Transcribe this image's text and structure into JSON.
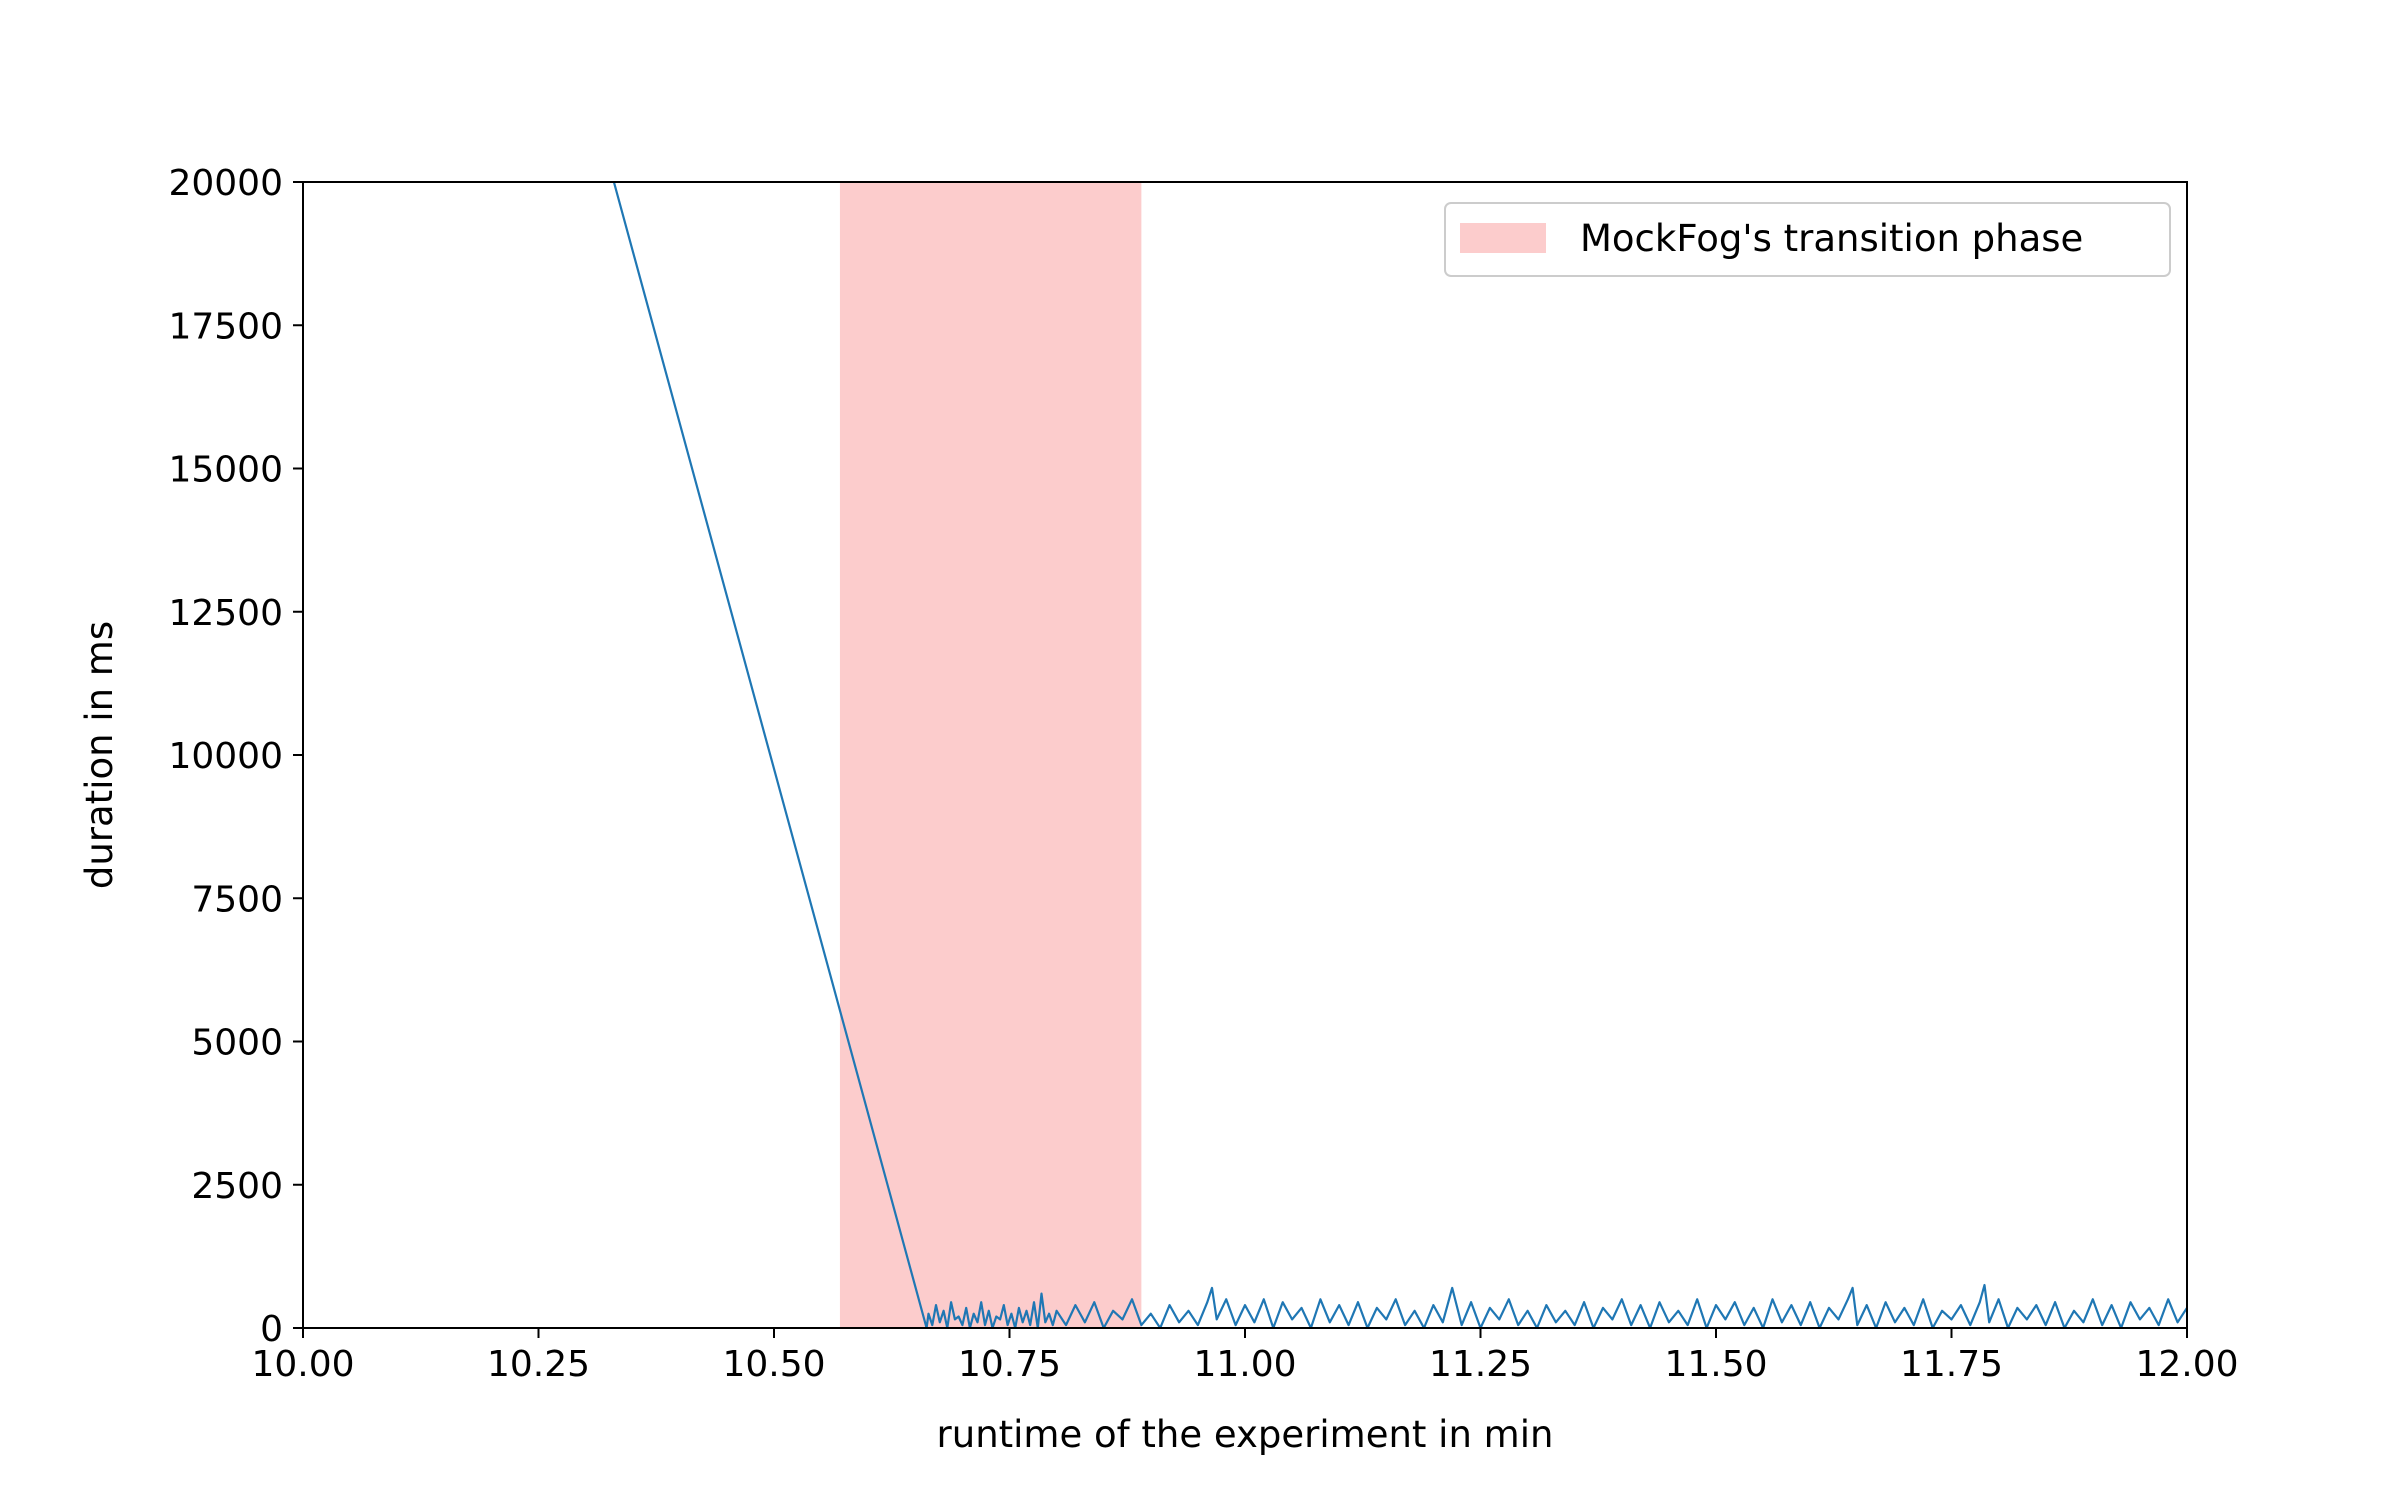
{
  "chart_data": {
    "type": "line",
    "title": "",
    "xlabel": "runtime of the experiment in min",
    "ylabel": "duration in ms",
    "xlim": [
      10.0,
      12.0
    ],
    "ylim": [
      0,
      20000
    ],
    "x_ticks": [
      "10.00",
      "10.25",
      "10.50",
      "10.75",
      "11.00",
      "11.25",
      "11.50",
      "11.75",
      "12.00"
    ],
    "y_ticks": [
      "0",
      "2500",
      "5000",
      "7500",
      "10000",
      "12500",
      "15000",
      "17500",
      "20000"
    ],
    "grid": false,
    "legend_position": "top-right",
    "transition_phase": {
      "label": "MockFog's transition phase",
      "x_start": 10.57,
      "x_end": 10.89,
      "color": "#fccccc"
    },
    "series": [
      {
        "color": "#1f77b4",
        "x": [
          10.0,
          10.33,
          10.662,
          10.664,
          10.668,
          10.672,
          10.676,
          10.68,
          10.684,
          10.688,
          10.692,
          10.696,
          10.7,
          10.704,
          10.708,
          10.712,
          10.716,
          10.72,
          10.724,
          10.728,
          10.732,
          10.736,
          10.74,
          10.744,
          10.748,
          10.752,
          10.756,
          10.76,
          10.764,
          10.768,
          10.772,
          10.776,
          10.78,
          10.784,
          10.788,
          10.792,
          10.796,
          10.8,
          10.81,
          10.82,
          10.83,
          10.84,
          10.85,
          10.86,
          10.87,
          10.88,
          10.89,
          10.9,
          10.91,
          10.92,
          10.93,
          10.94,
          10.95,
          10.96,
          10.965,
          10.97,
          10.98,
          10.99,
          11.0,
          11.01,
          11.02,
          11.03,
          11.04,
          11.05,
          11.06,
          11.07,
          11.08,
          11.09,
          11.1,
          11.11,
          11.12,
          11.13,
          11.14,
          11.15,
          11.16,
          11.17,
          11.18,
          11.19,
          11.2,
          11.21,
          11.22,
          11.23,
          11.24,
          11.25,
          11.26,
          11.27,
          11.28,
          11.29,
          11.3,
          11.31,
          11.32,
          11.33,
          11.34,
          11.35,
          11.36,
          11.37,
          11.38,
          11.39,
          11.4,
          11.41,
          11.42,
          11.43,
          11.44,
          11.45,
          11.46,
          11.47,
          11.48,
          11.49,
          11.5,
          11.51,
          11.52,
          11.53,
          11.54,
          11.55,
          11.56,
          11.57,
          11.58,
          11.59,
          11.6,
          11.61,
          11.62,
          11.63,
          11.64,
          11.645,
          11.65,
          11.66,
          11.67,
          11.68,
          11.69,
          11.7,
          11.71,
          11.72,
          11.73,
          11.74,
          11.75,
          11.76,
          11.77,
          11.78,
          11.785,
          11.79,
          11.8,
          11.81,
          11.82,
          11.83,
          11.84,
          11.85,
          11.86,
          11.87,
          11.88,
          11.89,
          11.9,
          11.91,
          11.92,
          11.93,
          11.94,
          11.95,
          11.96,
          11.97,
          11.98,
          11.99,
          12.0
        ],
        "y": [
          27000,
          20000,
          0,
          250,
          50,
          400,
          100,
          300,
          0,
          450,
          150,
          200,
          50,
          350,
          0,
          250,
          100,
          450,
          50,
          300,
          0,
          200,
          150,
          400,
          50,
          250,
          0,
          350,
          100,
          300,
          50,
          450,
          0,
          600,
          100,
          250,
          50,
          300,
          50,
          400,
          100,
          450,
          0,
          300,
          150,
          500,
          50,
          250,
          0,
          400,
          100,
          300,
          50,
          450,
          700,
          150,
          500,
          50,
          400,
          100,
          500,
          0,
          450,
          150,
          350,
          0,
          500,
          100,
          400,
          50,
          450,
          0,
          350,
          150,
          500,
          50,
          300,
          0,
          400,
          100,
          700,
          50,
          450,
          0,
          350,
          150,
          500,
          50,
          300,
          0,
          400,
          100,
          300,
          50,
          450,
          0,
          350,
          150,
          500,
          50,
          400,
          0,
          450,
          100,
          300,
          50,
          500,
          0,
          400,
          150,
          450,
          50,
          350,
          0,
          500,
          100,
          400,
          50,
          450,
          0,
          350,
          150,
          500,
          700,
          50,
          400,
          0,
          450,
          100,
          350,
          50,
          500,
          0,
          300,
          150,
          400,
          50,
          450,
          750,
          100,
          500,
          0,
          350,
          150,
          400,
          50,
          450,
          0,
          300,
          100,
          500,
          50,
          400,
          0,
          450,
          150,
          350,
          50,
          500,
          100,
          350
        ]
      }
    ]
  }
}
